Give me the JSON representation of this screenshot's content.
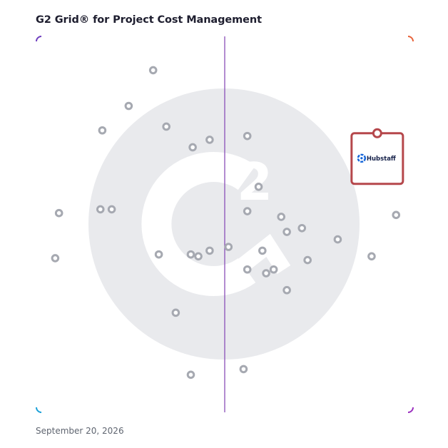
{
  "page": {
    "title": "G2 Grid® for Project Cost Management",
    "date": "September 20, 2026"
  },
  "colors": {
    "frame_top_left": "#6f3fbf",
    "frame_top_right": "#e8623a",
    "frame_bottom_left": "#1aa0d8",
    "frame_bottom_right": "#9a2fbf",
    "h_divider_left": "#3b5bc0",
    "h_divider_right": "#b0344a",
    "v_divider": "#8a4fb8",
    "point": "#a6a9b1",
    "watermark": "#e9eaed",
    "highlight": "#b5474b",
    "hubstaff_logo": "#1565d8"
  },
  "chart_data": {
    "type": "scatter",
    "title": "G2 Grid® for Project Cost Management",
    "xlabel": "",
    "ylabel": "",
    "xlim": [
      0,
      100
    ],
    "ylim": [
      0,
      100
    ],
    "quadrant_dividers": {
      "x": 50,
      "y": 50
    },
    "watermark_icon": "g2-logo",
    "series": [
      {
        "points": [
          {
            "x": 31,
            "y": 91
          },
          {
            "x": 24.5,
            "y": 81.5
          },
          {
            "x": 17.5,
            "y": 75
          },
          {
            "x": 34.5,
            "y": 76
          },
          {
            "x": 41.5,
            "y": 70.5
          },
          {
            "x": 46,
            "y": 72.5
          },
          {
            "x": 56,
            "y": 73.5
          },
          {
            "x": 59,
            "y": 60
          },
          {
            "x": 56,
            "y": 53.5
          },
          {
            "x": 6,
            "y": 53
          },
          {
            "x": 17,
            "y": 54
          },
          {
            "x": 20,
            "y": 54
          },
          {
            "x": 65,
            "y": 52
          },
          {
            "x": 66.5,
            "y": 48
          },
          {
            "x": 70.5,
            "y": 49
          },
          {
            "x": 80,
            "y": 46
          },
          {
            "x": 95.5,
            "y": 52.5
          },
          {
            "x": 5,
            "y": 41
          },
          {
            "x": 32.5,
            "y": 42
          },
          {
            "x": 41,
            "y": 42
          },
          {
            "x": 43,
            "y": 41.5
          },
          {
            "x": 46,
            "y": 43
          },
          {
            "x": 51,
            "y": 44
          },
          {
            "x": 60,
            "y": 43
          },
          {
            "x": 56,
            "y": 38
          },
          {
            "x": 63,
            "y": 38
          },
          {
            "x": 61,
            "y": 37
          },
          {
            "x": 72,
            "y": 40.5
          },
          {
            "x": 89,
            "y": 41.5
          },
          {
            "x": 66.5,
            "y": 32.5
          },
          {
            "x": 37,
            "y": 26.5
          },
          {
            "x": 55,
            "y": 11.5
          },
          {
            "x": 41,
            "y": 10
          }
        ]
      }
    ],
    "highlighted": {
      "label": "Hubstaff",
      "x": 90.5,
      "y": 67.5,
      "logo": "hubstaff-logo-icon"
    }
  }
}
